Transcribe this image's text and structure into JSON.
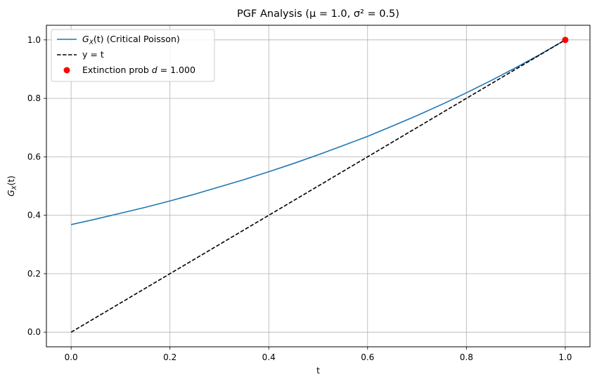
{
  "chart_data": {
    "type": "line",
    "title": "PGF Analysis (μ = 1.0, σ² = 0.5)",
    "xlabel": "t",
    "ylabel": {
      "main": "G",
      "sub": "X",
      "rest": "(t)"
    },
    "xlim": [
      -0.05,
      1.05
    ],
    "ylim": [
      -0.05,
      1.05
    ],
    "xticks": [
      0.0,
      0.2,
      0.4,
      0.6,
      0.8,
      1.0
    ],
    "xtick_labels": [
      "0.0",
      "0.2",
      "0.4",
      "0.6",
      "0.8",
      "1.0"
    ],
    "yticks": [
      0.0,
      0.2,
      0.4,
      0.6,
      0.8,
      1.0
    ],
    "ytick_labels": [
      "0.0",
      "0.2",
      "0.4",
      "0.6",
      "0.8",
      "1.0"
    ],
    "grid": true,
    "legend_position": "top-left",
    "series": [
      {
        "name": "G_X(t) (Critical Poisson)",
        "legend": {
          "main": "G",
          "sub": "X",
          "rest": "(t) (Critical Poisson)"
        },
        "style": "solid",
        "color": "#1f77b4",
        "x": [
          0.0,
          0.05,
          0.1,
          0.15,
          0.2,
          0.25,
          0.3,
          0.35,
          0.4,
          0.45,
          0.5,
          0.55,
          0.6,
          0.65,
          0.7,
          0.75,
          0.8,
          0.85,
          0.9,
          0.95,
          1.0
        ],
        "values": [
          0.368,
          0.387,
          0.407,
          0.427,
          0.449,
          0.472,
          0.497,
          0.522,
          0.549,
          0.577,
          0.607,
          0.638,
          0.67,
          0.705,
          0.741,
          0.779,
          0.819,
          0.861,
          0.905,
          0.951,
          1.0
        ]
      },
      {
        "name": "y = t",
        "legend": {
          "main": "y = t",
          "sub": "",
          "rest": ""
        },
        "style": "dashed",
        "color": "#000000",
        "x": [
          0.0,
          1.0
        ],
        "values": [
          0.0,
          1.0
        ]
      },
      {
        "name": "Extinction prob d = 1.000",
        "legend": {
          "main": "Extinction prob ",
          "italic": "d",
          "rest": " = 1.000"
        },
        "style": "marker",
        "color": "#ff0000",
        "x": [
          1.0
        ],
        "values": [
          1.0
        ]
      }
    ]
  }
}
